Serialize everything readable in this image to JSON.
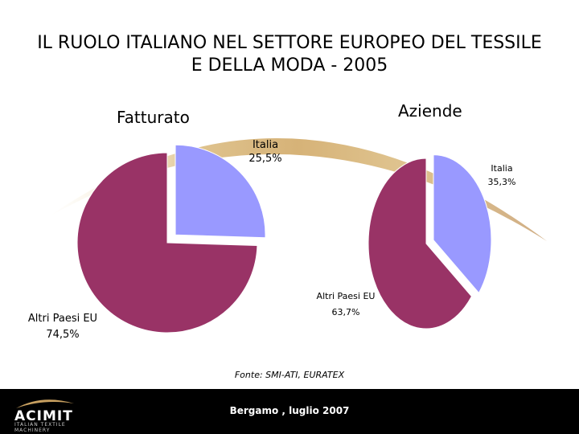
{
  "title_line1": "IL RUOLO ITALIANO NEL SETTORE EUROPEO DEL TESSILE",
  "title_line2": "E DELLA MODA - 2005",
  "chart_data": [
    {
      "type": "pie",
      "title": "Fatturato",
      "slices": [
        {
          "label": "Italia",
          "value_label": "25,5%",
          "value": 25.5,
          "color": "#9999ff"
        },
        {
          "label": "Altri Paesi EU",
          "value_label": "74,5%",
          "value": 74.5,
          "color": "#993366"
        }
      ]
    },
    {
      "type": "pie",
      "title": "Aziende",
      "slices": [
        {
          "label": "Italia",
          "value_label": "35,3%",
          "value": 35.3,
          "color": "#9999ff"
        },
        {
          "label": "Altri Paesi EU",
          "value_label": "63,7%",
          "value": 63.7,
          "color": "#993366"
        }
      ]
    }
  ],
  "source": "Fonte: SMI-ATI, EURATEX",
  "footer": {
    "logo_text": "ACIMIT",
    "logo_sub": "ITALIAN TEXTILE MACHINERY",
    "center_text": "Bergamo , luglio 2007"
  }
}
